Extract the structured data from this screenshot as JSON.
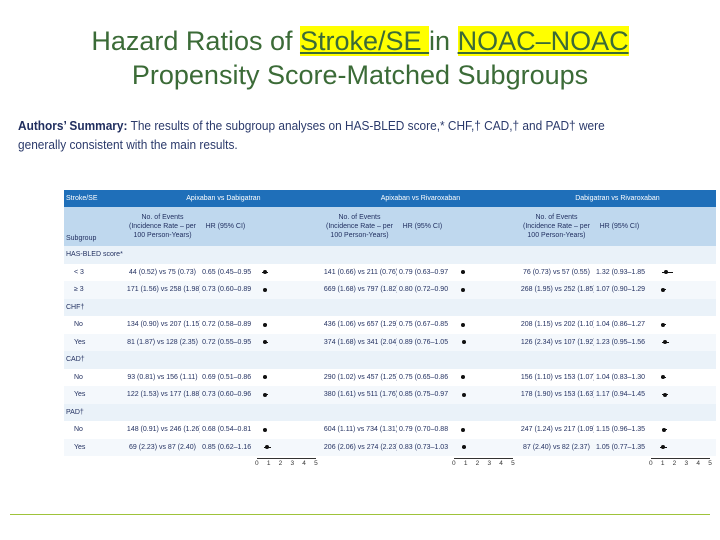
{
  "title": {
    "part1": "Hazard Ratios of ",
    "hl1": "Stroke/SE ",
    "part2": " in ",
    "hl2": "NOAC–NOAC ",
    "line2": "Propensity Score-Matched Subgroups"
  },
  "summary": {
    "label": "Authors’ Summary:",
    "text": "The results of the subgroup analyses on HAS-BLED score,* CHF,† CAD,† and PAD† were generally consistent with the main results."
  },
  "table": {
    "outcome_label": "Stroke/SE",
    "comparisons": [
      "Apixaban vs Dabigatran",
      "Apixaban vs Rivaroxaban",
      "Dabigatran vs Rivaroxaban"
    ],
    "subgroup_header": "Subgroup",
    "events_header": "No. of Events (Incidence Rate – per 100 Person-Years)",
    "hr_header": "HR (95% CI)",
    "axis_ticks": [
      "0",
      "1",
      "2",
      "3",
      "4",
      "5"
    ],
    "groups": [
      {
        "name": "HAS-BLED score*",
        "rows": [
          {
            "label": "< 3",
            "cells": [
              {
                "events": "44 (0.52) vs 75 (0.73)",
                "hr": "0.65 (0.45–0.95)",
                "est": 0.65,
                "lo": 0.45,
                "hi": 0.95
              },
              {
                "events": "141 (0.66) vs 211 (0.76)",
                "hr": "0.79 (0.63–0.97)",
                "est": 0.79,
                "lo": 0.63,
                "hi": 0.97
              },
              {
                "events": "76 (0.73) vs 57 (0.55)",
                "hr": "1.32 (0.93–1.85)",
                "est": 1.32,
                "lo": 0.93,
                "hi": 1.85
              }
            ]
          },
          {
            "label": "≥ 3",
            "cells": [
              {
                "events": "171 (1.56) vs 258 (1.98)",
                "hr": "0.73 (0.60–0.89)",
                "est": 0.73,
                "lo": 0.6,
                "hi": 0.89
              },
              {
                "events": "669 (1.68) vs 797 (1.82)",
                "hr": "0.80 (0.72–0.90)",
                "est": 0.8,
                "lo": 0.72,
                "hi": 0.9
              },
              {
                "events": "268 (1.95) vs 252 (1.85)",
                "hr": "1.07 (0.90–1.29)",
                "est": 1.07,
                "lo": 0.9,
                "hi": 1.29
              }
            ]
          }
        ]
      },
      {
        "name": "CHF†",
        "rows": [
          {
            "label": "No",
            "cells": [
              {
                "events": "134 (0.90) vs 207 (1.15)",
                "hr": "0.72 (0.58–0.89)",
                "est": 0.72,
                "lo": 0.58,
                "hi": 0.89
              },
              {
                "events": "436 (1.06) vs 657 (1.29)",
                "hr": "0.75 (0.67–0.85)",
                "est": 0.75,
                "lo": 0.67,
                "hi": 0.85
              },
              {
                "events": "208 (1.15) vs 202 (1.10)",
                "hr": "1.04 (0.86–1.27)",
                "est": 1.04,
                "lo": 0.86,
                "hi": 1.27
              }
            ]
          },
          {
            "label": "Yes",
            "cells": [
              {
                "events": "81 (1.87) vs 128 (2.35)",
                "hr": "0.72 (0.55–0.95)",
                "est": 0.72,
                "lo": 0.55,
                "hi": 0.95
              },
              {
                "events": "374 (1.68) vs 341 (2.04)",
                "hr": "0.89 (0.76–1.05)",
                "est": 0.89,
                "lo": 0.76,
                "hi": 1.05
              },
              {
                "events": "126 (2.34) vs 107 (1.92)",
                "hr": "1.23 (0.95–1.56)",
                "est": 1.23,
                "lo": 0.95,
                "hi": 1.56
              }
            ]
          }
        ]
      },
      {
        "name": "CAD†",
        "rows": [
          {
            "label": "No",
            "cells": [
              {
                "events": "93 (0.81) vs 156 (1.11)",
                "hr": "0.69 (0.51–0.86)",
                "est": 0.69,
                "lo": 0.51,
                "hi": 0.86
              },
              {
                "events": "290 (1.02) vs 457 (1.25)",
                "hr": "0.75 (0.65–0.86)",
                "est": 0.75,
                "lo": 0.65,
                "hi": 0.86
              },
              {
                "events": "156 (1.10) vs 153 (1.07)",
                "hr": "1.04 (0.83–1.30)",
                "est": 1.04,
                "lo": 0.83,
                "hi": 1.3
              }
            ]
          },
          {
            "label": "Yes",
            "cells": [
              {
                "events": "122 (1.53) vs 177 (1.88)",
                "hr": "0.73 (0.60–0.96)",
                "est": 0.73,
                "lo": 0.6,
                "hi": 0.96
              },
              {
                "events": "380 (1.61) vs 511 (1.76)",
                "hr": "0.85 (0.75–0.97)",
                "est": 0.85,
                "lo": 0.75,
                "hi": 0.97
              },
              {
                "events": "178 (1.90) vs 153 (1.63)",
                "hr": "1.17 (0.94–1.45)",
                "est": 1.17,
                "lo": 0.94,
                "hi": 1.45
              }
            ]
          }
        ]
      },
      {
        "name": "PAD†",
        "rows": [
          {
            "label": "No",
            "cells": [
              {
                "events": "148 (0.91) vs 246 (1.26)",
                "hr": "0.68 (0.54–0.81)",
                "est": 0.68,
                "lo": 0.54,
                "hi": 0.81
              },
              {
                "events": "604 (1.11) vs 734 (1.31)",
                "hr": "0.79 (0.70–0.88)",
                "est": 0.79,
                "lo": 0.7,
                "hi": 0.88
              },
              {
                "events": "247 (1.24) vs 217 (1.09)",
                "hr": "1.15 (0.96–1.35)",
                "est": 1.15,
                "lo": 0.96,
                "hi": 1.35
              }
            ]
          },
          {
            "label": "Yes",
            "cells": [
              {
                "events": "69 (2.23) vs 87 (2.40)",
                "hr": "0.85 (0.62–1.16)",
                "est": 0.85,
                "lo": 0.62,
                "hi": 1.16
              },
              {
                "events": "206 (2.06) vs 274 (2.23)",
                "hr": "0.83 (0.73–1.03)",
                "est": 0.83,
                "lo": 0.73,
                "hi": 1.03
              },
              {
                "events": "87 (2.40) vs 82 (2.37)",
                "hr": "1.05 (0.77–1.35)",
                "est": 1.05,
                "lo": 0.77,
                "hi": 1.35
              }
            ]
          }
        ]
      }
    ]
  },
  "colors": {
    "title": "#3b6b37",
    "highlight": "#ffff00",
    "table_header": "#1f6fb9",
    "subheader": "#bfd8ee",
    "rule": "#9fc33a"
  }
}
